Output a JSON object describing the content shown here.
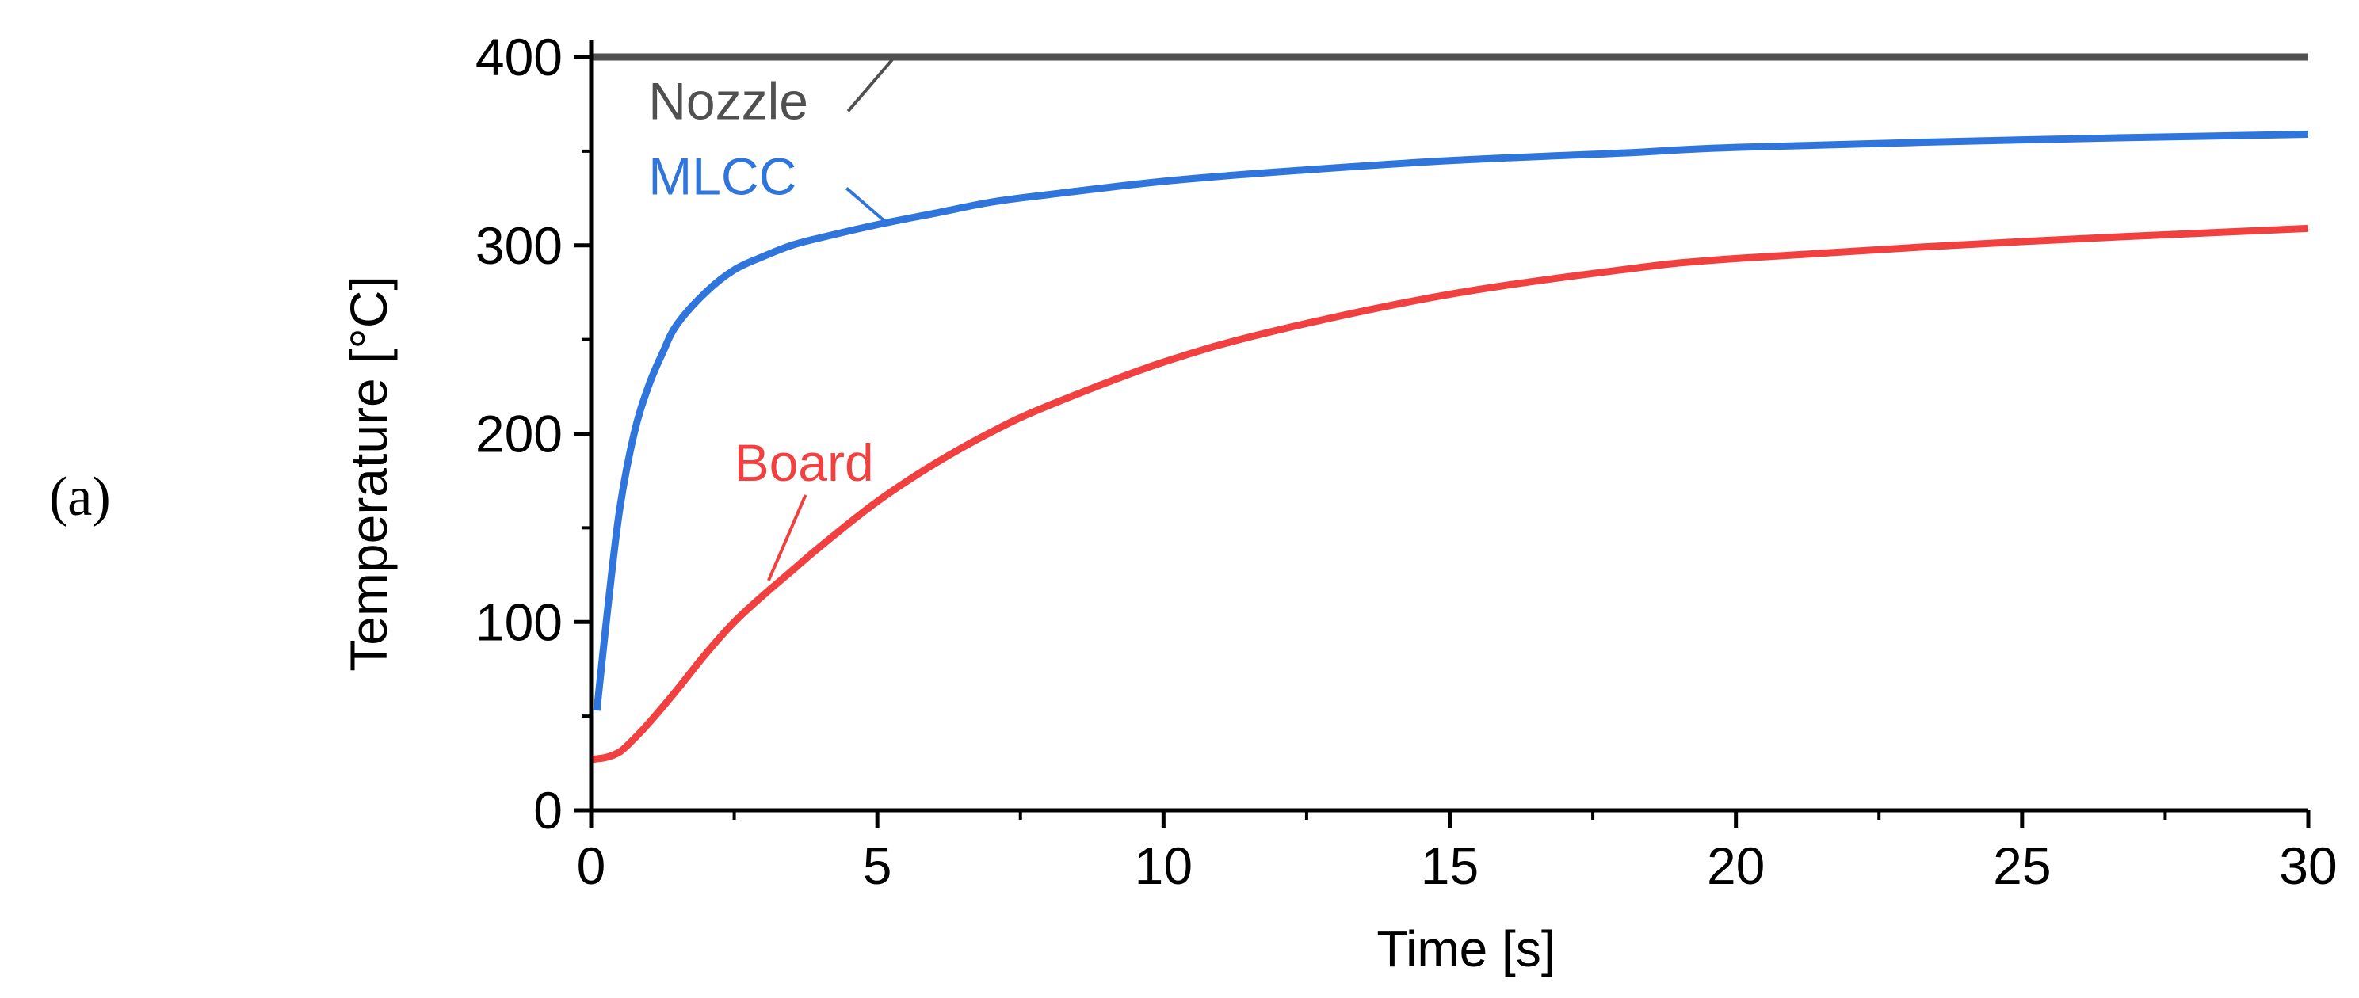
{
  "panel_label": "(a)",
  "colors": {
    "nozzle": "#505050",
    "mlcc": "#2f75dc",
    "board": "#f04040",
    "axis": "#000000"
  },
  "chart_data": {
    "type": "line",
    "title": "",
    "xlabel": "Time [s]",
    "ylabel": "Temperature [°C]",
    "xlim": [
      0,
      30
    ],
    "ylim": [
      0,
      400
    ],
    "x_ticks": [
      0,
      5,
      10,
      15,
      20,
      25,
      30
    ],
    "y_ticks": [
      0,
      100,
      200,
      300,
      400
    ],
    "x_minor_step": 2.5,
    "y_minor_step": 50,
    "grid": false,
    "legend": "none",
    "series": [
      {
        "name": "Nozzle",
        "color": "#505050",
        "x": [
          0,
          30
        ],
        "y": [
          400,
          400
        ],
        "label": {
          "text": "Nozzle",
          "at": [
            1.0,
            367
          ],
          "pointer_to": [
            5.3,
            400
          ]
        }
      },
      {
        "name": "MLCC",
        "color": "#2f75dc",
        "x": [
          0.1,
          0.3,
          0.5,
          0.75,
          1.0,
          1.25,
          1.5,
          2.0,
          2.5,
          3.0,
          3.5,
          4.0,
          5.0,
          6.0,
          7.0,
          8.0,
          10.0,
          12.0,
          15.0,
          18.0,
          20.0,
          25.0,
          30.0
        ],
        "y": [
          53,
          110,
          160,
          200,
          225,
          243,
          258,
          275,
          287,
          294,
          300,
          304,
          311,
          317,
          323,
          327,
          334,
          339,
          345,
          349,
          352,
          356,
          359
        ],
        "label": {
          "text": "MLCC",
          "at": [
            1.0,
            327
          ],
          "pointer_to": [
            5.2,
            311
          ]
        }
      },
      {
        "name": "Board",
        "color": "#f04040",
        "x": [
          0,
          0.25,
          0.5,
          0.75,
          1.0,
          1.5,
          2.0,
          2.5,
          3.0,
          3.5,
          4.0,
          5.0,
          6.0,
          7.0,
          8.0,
          10.0,
          12.0,
          15.0,
          18.0,
          20.0,
          25.0,
          30.0
        ],
        "y": [
          27,
          28,
          31,
          38,
          46,
          64,
          83,
          100,
          114,
          127,
          140,
          164,
          184,
          201,
          215,
          238,
          255,
          274,
          287,
          293,
          302,
          309
        ],
        "label": {
          "text": "Board",
          "at": [
            2.5,
            175
          ],
          "pointer_to": [
            3.1,
            122
          ]
        }
      }
    ]
  }
}
